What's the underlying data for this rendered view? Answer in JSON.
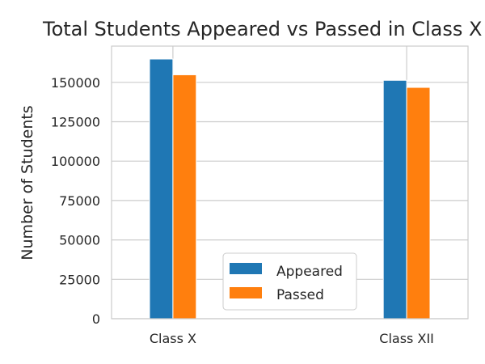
{
  "chart_data": {
    "type": "bar",
    "title": "Total Students Appeared vs Passed in Class X & XII",
    "xlabel": "",
    "ylabel": "Number of Students",
    "categories": [
      "Class X",
      "Class XII"
    ],
    "series": [
      {
        "name": "Appeared",
        "color": "#1f77b4",
        "values": [
          164800,
          151300
        ]
      },
      {
        "name": "Passed",
        "color": "#ff7f0e",
        "values": [
          154800,
          146800
        ]
      }
    ],
    "ylim": [
      0,
      173000
    ],
    "yticks": [
      0,
      25000,
      50000,
      75000,
      100000,
      125000,
      150000
    ],
    "grid": true,
    "legend_position": "lower center"
  }
}
